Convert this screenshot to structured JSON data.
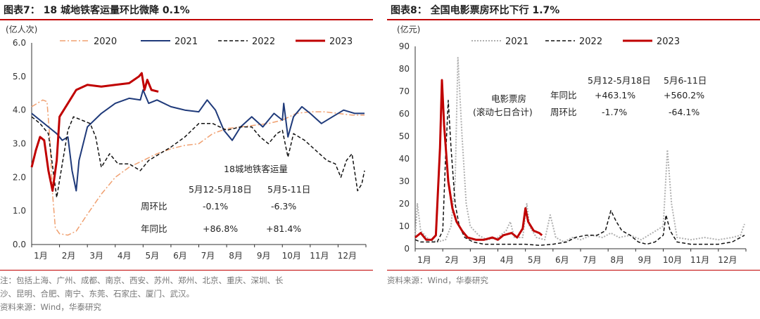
{
  "left": {
    "title": "图表7：  18 城地铁客运量环比微降 0.1%",
    "note_line1": "注：包括上海、广州、成都、南京、西安、苏州、郑州、北京、重庆、深圳、长",
    "note_line2": "沙、昆明、合肥、南宁、东莞、石家庄、厦门、武汉。",
    "source": "资料来源：Wind，华泰研究",
    "chart_data": {
      "type": "line",
      "y_unit": "(亿人次)",
      "ylim": [
        0,
        6
      ],
      "yticks": [
        "0.0",
        "1.0",
        "2.0",
        "3.0",
        "4.0",
        "5.0",
        "6.0"
      ],
      "xlim": [
        1,
        13
      ],
      "xticks": [
        "1月",
        "2月",
        "3月",
        "4月",
        "5月",
        "6月",
        "7月",
        "8月",
        "9月",
        "10月",
        "11月",
        "12月"
      ],
      "series": [
        {
          "name": "2020",
          "color": "#f0a070",
          "dash": "8,3,2,3",
          "width": 1.5,
          "points": [
            [
              1,
              4.1
            ],
            [
              1.2,
              4.2
            ],
            [
              1.4,
              4.3
            ],
            [
              1.55,
              4.25
            ],
            [
              1.65,
              3.2
            ],
            [
              1.75,
              1.5
            ],
            [
              1.85,
              0.5
            ],
            [
              2,
              0.32
            ],
            [
              2.3,
              0.28
            ],
            [
              2.6,
              0.4
            ],
            [
              3,
              0.9
            ],
            [
              3.5,
              1.5
            ],
            [
              4,
              2.0
            ],
            [
              4.5,
              2.3
            ],
            [
              5,
              2.5
            ],
            [
              5.5,
              2.7
            ],
            [
              6,
              2.85
            ],
            [
              6.5,
              2.95
            ],
            [
              7,
              3.0
            ],
            [
              7.5,
              3.3
            ],
            [
              8,
              3.45
            ],
            [
              8.5,
              3.5
            ],
            [
              9,
              3.55
            ],
            [
              9.5,
              3.6
            ],
            [
              10,
              3.7
            ],
            [
              10.5,
              3.9
            ],
            [
              11,
              3.95
            ],
            [
              11.5,
              3.95
            ],
            [
              12,
              3.9
            ],
            [
              12.5,
              3.85
            ],
            [
              12.95,
              3.85
            ]
          ]
        },
        {
          "name": "2021",
          "color": "#1f3a7a",
          "dash": "",
          "width": 2,
          "points": [
            [
              1,
              3.9
            ],
            [
              1.3,
              3.7
            ],
            [
              1.6,
              3.5
            ],
            [
              1.9,
              3.3
            ],
            [
              2.1,
              3.1
            ],
            [
              2.3,
              3.2
            ],
            [
              2.45,
              2.2
            ],
            [
              2.6,
              1.6
            ],
            [
              2.7,
              2.5
            ],
            [
              3,
              3.5
            ],
            [
              3.5,
              3.9
            ],
            [
              4,
              4.2
            ],
            [
              4.5,
              4.35
            ],
            [
              4.9,
              4.3
            ],
            [
              5,
              4.6
            ],
            [
              5.2,
              4.2
            ],
            [
              5.5,
              4.3
            ],
            [
              6,
              4.1
            ],
            [
              6.5,
              4.0
            ],
            [
              7,
              3.95
            ],
            [
              7.3,
              4.3
            ],
            [
              7.6,
              4.0
            ],
            [
              7.9,
              3.4
            ],
            [
              8.2,
              3.1
            ],
            [
              8.5,
              3.5
            ],
            [
              8.9,
              3.8
            ],
            [
              9.3,
              3.5
            ],
            [
              9.7,
              3.9
            ],
            [
              10,
              3.7
            ],
            [
              10.05,
              4.2
            ],
            [
              10.2,
              3.2
            ],
            [
              10.4,
              3.8
            ],
            [
              10.7,
              4.1
            ],
            [
              11,
              3.9
            ],
            [
              11.4,
              3.6
            ],
            [
              11.8,
              3.8
            ],
            [
              12.2,
              4.0
            ],
            [
              12.6,
              3.9
            ],
            [
              12.95,
              3.9
            ]
          ]
        },
        {
          "name": "2022",
          "color": "#111111",
          "dash": "5,3",
          "width": 1.5,
          "points": [
            [
              1,
              3.8
            ],
            [
              1.3,
              3.6
            ],
            [
              1.6,
              3.3
            ],
            [
              1.8,
              2.0
            ],
            [
              1.9,
              1.4
            ],
            [
              2.1,
              2.4
            ],
            [
              2.3,
              3.4
            ],
            [
              2.5,
              3.8
            ],
            [
              2.8,
              3.7
            ],
            [
              3.1,
              3.6
            ],
            [
              3.3,
              3.2
            ],
            [
              3.5,
              2.3
            ],
            [
              3.8,
              2.7
            ],
            [
              4.1,
              2.4
            ],
            [
              4.5,
              2.4
            ],
            [
              4.9,
              2.2
            ],
            [
              5.2,
              2.5
            ],
            [
              5.6,
              2.7
            ],
            [
              6,
              2.9
            ],
            [
              6.5,
              3.2
            ],
            [
              7,
              3.6
            ],
            [
              7.5,
              3.6
            ],
            [
              8,
              3.4
            ],
            [
              8.5,
              3.5
            ],
            [
              8.9,
              3.5
            ],
            [
              9.2,
              3.2
            ],
            [
              9.5,
              3.0
            ],
            [
              9.8,
              3.3
            ],
            [
              10,
              3.4
            ],
            [
              10.2,
              2.6
            ],
            [
              10.4,
              3.3
            ],
            [
              10.8,
              3.1
            ],
            [
              11.2,
              2.8
            ],
            [
              11.6,
              2.5
            ],
            [
              11.9,
              2.4
            ],
            [
              12.1,
              2.0
            ],
            [
              12.3,
              2.5
            ],
            [
              12.5,
              2.7
            ],
            [
              12.7,
              1.6
            ],
            [
              12.85,
              1.8
            ],
            [
              12.95,
              2.2
            ]
          ]
        },
        {
          "name": "2023",
          "color": "#c00000",
          "dash": "",
          "width": 3,
          "points": [
            [
              1,
              2.3
            ],
            [
              1.15,
              2.8
            ],
            [
              1.3,
              3.2
            ],
            [
              1.45,
              3.1
            ],
            [
              1.6,
              2.2
            ],
            [
              1.75,
              1.6
            ],
            [
              1.9,
              2.5
            ],
            [
              2.0,
              3.8
            ],
            [
              2.3,
              4.2
            ],
            [
              2.6,
              4.6
            ],
            [
              3,
              4.75
            ],
            [
              3.5,
              4.7
            ],
            [
              4,
              4.75
            ],
            [
              4.5,
              4.8
            ],
            [
              4.85,
              5.0
            ],
            [
              4.95,
              5.1
            ],
            [
              5.05,
              4.6
            ],
            [
              5.15,
              4.9
            ],
            [
              5.3,
              4.6
            ],
            [
              5.55,
              4.55
            ]
          ]
        }
      ],
      "annotation": {
        "title": "18城地铁客运量",
        "col1": "5月12-5月18日",
        "col2": "5月5-11日",
        "row1_label": "周环比",
        "row1_v1": "-0.1%",
        "row1_v2": "-6.3%",
        "row2_label": "年同比",
        "row2_v1": "+86.8%",
        "row2_v2": "+81.4%"
      }
    }
  },
  "right": {
    "title": "图表8：  全国电影票房环比下行 1.7%",
    "source": "资料来源：Wind，华泰研究",
    "chart_data": {
      "type": "line",
      "y_unit": "(亿元)",
      "ylim": [
        0,
        90
      ],
      "yticks": [
        "0",
        "10",
        "20",
        "30",
        "40",
        "50",
        "60",
        "70",
        "80",
        "90"
      ],
      "xlim": [
        1,
        13
      ],
      "xticks": [
        "1月",
        "2月",
        "3月",
        "4月",
        "5月",
        "6月",
        "7月",
        "8月",
        "9月",
        "10月",
        "11月",
        "12月"
      ],
      "series": [
        {
          "name": "2021",
          "color": "#b0b0b0",
          "dash": "2,2",
          "width": 2,
          "points": [
            [
              1,
              5
            ],
            [
              1.08,
              20
            ],
            [
              1.2,
              8
            ],
            [
              1.5,
              4
            ],
            [
              1.8,
              3
            ],
            [
              2.1,
              4
            ],
            [
              2.3,
              10
            ],
            [
              2.45,
              30
            ],
            [
              2.55,
              85
            ],
            [
              2.7,
              50
            ],
            [
              2.85,
              20
            ],
            [
              3,
              10
            ],
            [
              3.3,
              6
            ],
            [
              3.6,
              4
            ],
            [
              4,
              5
            ],
            [
              4.3,
              8
            ],
            [
              4.45,
              12
            ],
            [
              4.6,
              5
            ],
            [
              4.9,
              5
            ],
            [
              5.05,
              20
            ],
            [
              5.15,
              10
            ],
            [
              5.4,
              5
            ],
            [
              5.7,
              4
            ],
            [
              5.9,
              15
            ],
            [
              6.1,
              5
            ],
            [
              6.4,
              3
            ],
            [
              6.7,
              5
            ],
            [
              7.0,
              4
            ],
            [
              7.4,
              6
            ],
            [
              7.8,
              5
            ],
            [
              8.1,
              7
            ],
            [
              8.4,
              5
            ],
            [
              8.8,
              6
            ],
            [
              9.2,
              4
            ],
            [
              9.6,
              7
            ],
            [
              10.0,
              10
            ],
            [
              10.15,
              44
            ],
            [
              10.3,
              20
            ],
            [
              10.5,
              5
            ],
            [
              11,
              4
            ],
            [
              11.5,
              5
            ],
            [
              12,
              4
            ],
            [
              12.5,
              5
            ],
            [
              12.8,
              6
            ],
            [
              12.95,
              11
            ]
          ]
        },
        {
          "name": "2022",
          "color": "#111111",
          "dash": "5,3",
          "width": 1.5,
          "points": [
            [
              1,
              4
            ],
            [
              1.2,
              3
            ],
            [
              1.5,
              3
            ],
            [
              1.8,
              3
            ],
            [
              2.0,
              8
            ],
            [
              2.1,
              40
            ],
            [
              2.2,
              66
            ],
            [
              2.3,
              45
            ],
            [
              2.45,
              20
            ],
            [
              2.6,
              10
            ],
            [
              2.8,
              5
            ],
            [
              3.1,
              3
            ],
            [
              3.5,
              2
            ],
            [
              4,
              2
            ],
            [
              4.5,
              2
            ],
            [
              5,
              2
            ],
            [
              5.5,
              1.5
            ],
            [
              6,
              2
            ],
            [
              6.5,
              3
            ],
            [
              6.8,
              5
            ],
            [
              7.2,
              6
            ],
            [
              7.6,
              6
            ],
            [
              7.9,
              8
            ],
            [
              8.1,
              17
            ],
            [
              8.3,
              12
            ],
            [
              8.5,
              8
            ],
            [
              8.8,
              6
            ],
            [
              9.1,
              3
            ],
            [
              9.4,
              2
            ],
            [
              9.7,
              3
            ],
            [
              10.0,
              6
            ],
            [
              10.1,
              15
            ],
            [
              10.25,
              8
            ],
            [
              10.5,
              3
            ],
            [
              11,
              2
            ],
            [
              11.5,
              2
            ],
            [
              12,
              2
            ],
            [
              12.5,
              3
            ],
            [
              12.8,
              5
            ],
            [
              12.95,
              6
            ]
          ]
        },
        {
          "name": "2023",
          "color": "#c00000",
          "dash": "",
          "width": 3,
          "points": [
            [
              1,
              5
            ],
            [
              1.2,
              7
            ],
            [
              1.4,
              4
            ],
            [
              1.6,
              4
            ],
            [
              1.75,
              6
            ],
            [
              1.9,
              45
            ],
            [
              1.97,
              75
            ],
            [
              2.05,
              55
            ],
            [
              2.2,
              30
            ],
            [
              2.35,
              18
            ],
            [
              2.5,
              12
            ],
            [
              2.7,
              8
            ],
            [
              2.9,
              5
            ],
            [
              3.2,
              4
            ],
            [
              3.5,
              4
            ],
            [
              3.8,
              5
            ],
            [
              4.0,
              4
            ],
            [
              4.2,
              6
            ],
            [
              4.5,
              7
            ],
            [
              4.7,
              5
            ],
            [
              4.9,
              9
            ],
            [
              5.0,
              18
            ],
            [
              5.1,
              12
            ],
            [
              5.3,
              8
            ],
            [
              5.5,
              7
            ],
            [
              5.6,
              6
            ]
          ]
        }
      ],
      "annotation": {
        "left_line1": "电影票房",
        "left_line2": "(滚动七日合计)",
        "col1": "5月12-5月18日",
        "col2": "5月6-11日",
        "row1_label": "年同比",
        "row1_v1": "+463.1%",
        "row1_v2": "+560.2%",
        "row2_label": "周环比",
        "row2_v1": "-1.7%",
        "row2_v2": "-64.1%"
      }
    }
  }
}
